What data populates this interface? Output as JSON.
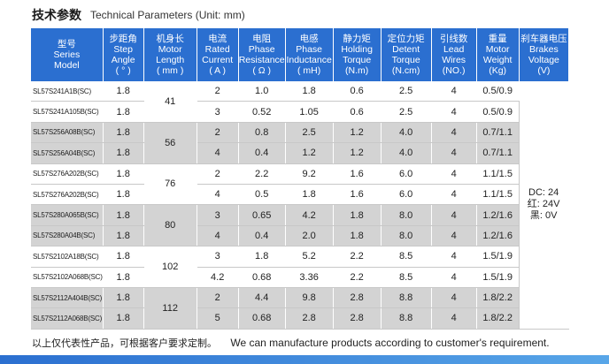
{
  "title": {
    "zh": "技术参数",
    "en": "Technical Parameters (Unit: mm)"
  },
  "headers": [
    {
      "zh": "型号",
      "en": [
        "Series",
        "Model"
      ]
    },
    {
      "zh": "步距角",
      "en": [
        "Step",
        "Angle",
        "( ° )"
      ]
    },
    {
      "zh": "机身长",
      "en": [
        "Motor",
        "Length",
        "( mm )"
      ]
    },
    {
      "zh": "电流",
      "en": [
        "Rated",
        "Current",
        "( A )"
      ]
    },
    {
      "zh": "电阻",
      "en": [
        "Phase",
        "Resistance",
        "( Ω )"
      ]
    },
    {
      "zh": "电感",
      "en": [
        "Phase",
        "Inductance",
        "( mH)"
      ]
    },
    {
      "zh": "静力矩",
      "en": [
        "Holding",
        "Torque",
        "(N.m)"
      ]
    },
    {
      "zh": "定位力矩",
      "en": [
        "Detent",
        "Torque",
        "(N.cm)"
      ]
    },
    {
      "zh": "引线数",
      "en": [
        "Lead",
        "Wires",
        "(NO.)"
      ]
    },
    {
      "zh": "重量",
      "en": [
        "Motor",
        "Weight",
        "(Kg)"
      ]
    },
    {
      "zh": "刹车器电压",
      "en": [
        "Brakes",
        "Voltage",
        "(V)"
      ]
    }
  ],
  "rows": [
    {
      "model": "SL57S241A1B(SC)",
      "step": "1.8",
      "current": "2",
      "resistance": "1.0",
      "inductance": "1.8",
      "holding": "0.6",
      "detent": "2.5",
      "leads": "4",
      "weight": "0.5/0.9"
    },
    {
      "model": "SL57S241A105B(SC)",
      "step": "1.8",
      "current": "3",
      "resistance": "0.52",
      "inductance": "1.05",
      "holding": "0.6",
      "detent": "2.5",
      "leads": "4",
      "weight": "0.5/0.9"
    },
    {
      "model": "SL57S256A08B(SC)",
      "step": "1.8",
      "current": "2",
      "resistance": "0.8",
      "inductance": "2.5",
      "holding": "1.2",
      "detent": "4.0",
      "leads": "4",
      "weight": "0.7/1.1"
    },
    {
      "model": "SL57S256A04B(SC)",
      "step": "1.8",
      "current": "4",
      "resistance": "0.4",
      "inductance": "1.2",
      "holding": "1.2",
      "detent": "4.0",
      "leads": "4",
      "weight": "0.7/1.1"
    },
    {
      "model": "SL57S276A202B(SC)",
      "step": "1.8",
      "current": "2",
      "resistance": "2.2",
      "inductance": "9.2",
      "holding": "1.6",
      "detent": "6.0",
      "leads": "4",
      "weight": "1.1/1.5"
    },
    {
      "model": "SL57S276A202B(SC)",
      "step": "1.8",
      "current": "4",
      "resistance": "0.5",
      "inductance": "1.8",
      "holding": "1.6",
      "detent": "6.0",
      "leads": "4",
      "weight": "1.1/1.5"
    },
    {
      "model": "SL57S280A065B(SC)",
      "step": "1.8",
      "current": "3",
      "resistance": "0.65",
      "inductance": "4.2",
      "holding": "1.8",
      "detent": "8.0",
      "leads": "4",
      "weight": "1.2/1.6"
    },
    {
      "model": "SL57S280A04B(SC)",
      "step": "1.8",
      "current": "4",
      "resistance": "0.4",
      "inductance": "2.0",
      "holding": "1.8",
      "detent": "8.0",
      "leads": "4",
      "weight": "1.2/1.6"
    },
    {
      "model": "SL57S2102A18B(SC)",
      "step": "1.8",
      "current": "3",
      "resistance": "1.8",
      "inductance": "5.2",
      "holding": "2.2",
      "detent": "8.5",
      "leads": "4",
      "weight": "1.5/1.9"
    },
    {
      "model": "SL57S2102A068B(SC)",
      "step": "1.8",
      "current": "4.2",
      "resistance": "0.68",
      "inductance": "3.36",
      "holding": "2.2",
      "detent": "8.5",
      "leads": "4",
      "weight": "1.5/1.9"
    },
    {
      "model": "SL57S2112A404B(SC)",
      "step": "1.8",
      "current": "2",
      "resistance": "4.4",
      "inductance": "9.8",
      "holding": "2.8",
      "detent": "8.8",
      "leads": "4",
      "weight": "1.8/2.2"
    },
    {
      "model": "SL57S2112A068B(SC)",
      "step": "1.8",
      "current": "5",
      "resistance": "0.68",
      "inductance": "2.8",
      "holding": "2.8",
      "detent": "8.8",
      "leads": "4",
      "weight": "1.8/2.2"
    }
  ],
  "lengths": [
    "41",
    "56",
    "76",
    "80",
    "102",
    "112"
  ],
  "brake_voltage": [
    "DC: 24",
    "红: 24V",
    "黑: 0V"
  ],
  "footer": {
    "zh": "以上仅代表性产品，可根据客户要求定制。",
    "en": "We can manufacture products according to customer's requirement."
  },
  "colors": {
    "header_bg": "#2b6fd0",
    "shaded_row": "#d3d3d3",
    "bar": "#2b6fd0"
  }
}
